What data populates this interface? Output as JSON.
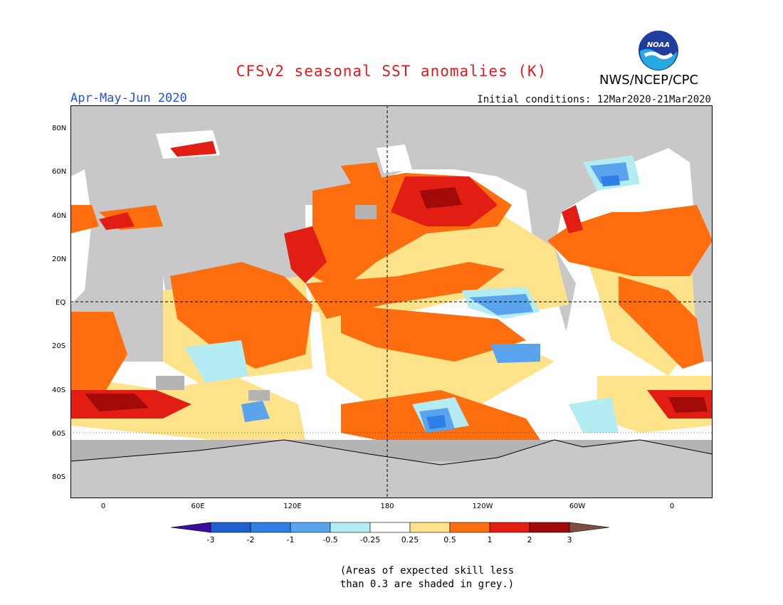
{
  "title": "CFSv2 seasonal SST anomalies (K)",
  "season": "Apr-May-Jun 2020",
  "initial_conditions": "Initial conditions: 12Mar2020-21Mar2020",
  "agency": "NWS/NCEP/CPC",
  "logo_text": "NOAA",
  "colors": {
    "title": "#dd1c1c",
    "season": "#2450e0",
    "land": "#c8c8c8",
    "no_skill_grey": "#b4b4b4"
  },
  "lat_labels": [
    "80N",
    "60N",
    "40N",
    "20N",
    "EQ",
    "20S",
    "40S",
    "60S",
    "80S"
  ],
  "lon_labels": [
    "0",
    "60E",
    "120E",
    "180",
    "120W",
    "60W",
    "0"
  ],
  "colorbar": {
    "labels": [
      "-3",
      "-2",
      "-1",
      "-0.5",
      "-0.25",
      "0.25",
      "0.5",
      "1",
      "2",
      "3"
    ],
    "colors": [
      "#3a0e9e",
      "#1f5fd0",
      "#2f7fe6",
      "#5aa4ee",
      "#b4ecf4",
      "#ffffff",
      "#ffe38a",
      "#fe6e0e",
      "#e21d14",
      "#a20a0a",
      "#7a4e42"
    ]
  },
  "note": {
    "line1": "(Areas of expected skill less",
    "line2": "than 0.3 are shaded in grey.)"
  }
}
